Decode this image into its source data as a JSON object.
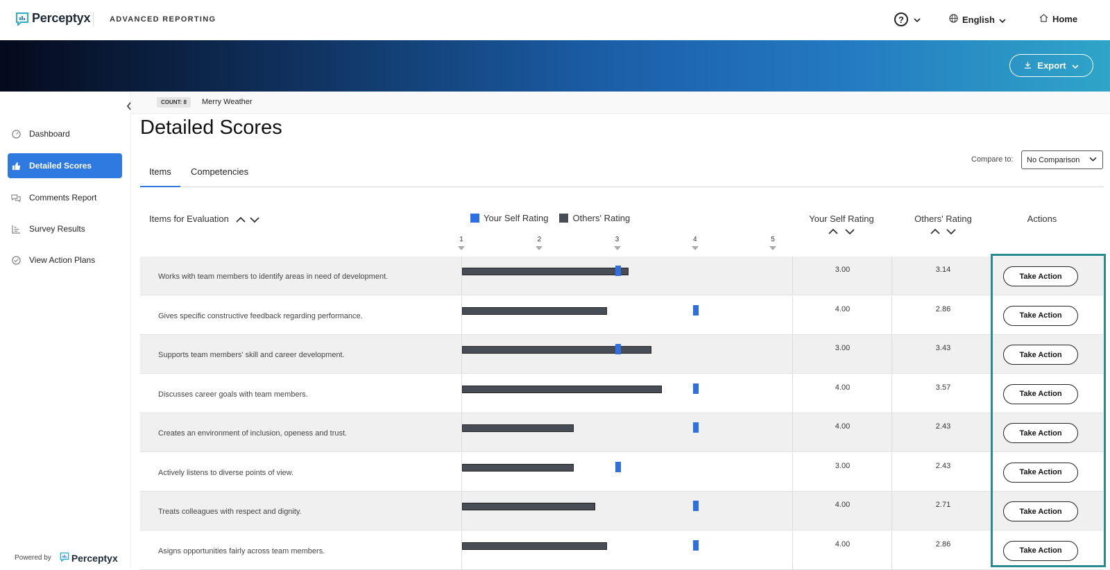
{
  "brand": {
    "name": "Perceptyx",
    "app_name": "ADVANCED REPORTING"
  },
  "topnav": {
    "help_label": "?",
    "language": "English",
    "home": "Home"
  },
  "banner": {
    "export_label": "Export"
  },
  "sidebar": {
    "items": [
      {
        "label": "Dashboard",
        "icon": "dashboard-icon",
        "active": false
      },
      {
        "label": "Detailed Scores",
        "icon": "thumbs-up-icon",
        "active": true
      },
      {
        "label": "Comments Report",
        "icon": "comments-icon",
        "active": false
      },
      {
        "label": "Survey Results",
        "icon": "bar-chart-icon",
        "active": false
      },
      {
        "label": "View Action Plans",
        "icon": "check-circle-icon",
        "active": false
      }
    ],
    "powered_by": "Powered by",
    "powered_brand": "Perceptyx"
  },
  "subheader": {
    "count": "COUNT: 8",
    "person": "Merry Weather"
  },
  "page": {
    "title": "Detailed Scores"
  },
  "tabs": [
    {
      "label": "Items",
      "active": true
    },
    {
      "label": "Competencies",
      "active": false
    }
  ],
  "compare": {
    "label": "Compare to:",
    "value": "No Comparison"
  },
  "table": {
    "headers": {
      "items": "Items for Evaluation",
      "self": "Your Self Rating",
      "others": "Others' Rating",
      "actions": "Actions"
    },
    "legend": {
      "self": "Your Self Rating",
      "others": "Others' Rating",
      "self_color": "#2f6fe4",
      "others_color": "#484c55"
    },
    "scale_ticks": [
      "1",
      "2",
      "3",
      "4",
      "5"
    ],
    "scale_min": 1,
    "scale_max": 5,
    "action_label": "Take Action",
    "rows": [
      {
        "item": "Works with team members to identify areas in need of development.",
        "self": "3.00",
        "others": "3.14"
      },
      {
        "item": "Gives specific constructive feedback regarding performance.",
        "self": "4.00",
        "others": "2.86"
      },
      {
        "item": "Supports team members' skill and career development.",
        "self": "3.00",
        "others": "3.43"
      },
      {
        "item": "Discusses career goals with team members.",
        "self": "4.00",
        "others": "3.57"
      },
      {
        "item": "Creates an environment of inclusion, openess and trust.",
        "self": "4.00",
        "others": "2.43"
      },
      {
        "item": "Actively listens to diverse points of view.",
        "self": "3.00",
        "others": "2.43"
      },
      {
        "item": "Treats colleagues with respect and dignity.",
        "self": "4.00",
        "others": "2.71"
      },
      {
        "item": "Asigns opportunities fairly across team members.",
        "self": "4.00",
        "others": "2.86"
      }
    ]
  },
  "colors": {
    "accent": "#2f7ae0",
    "highlight": "#2a8a90"
  }
}
